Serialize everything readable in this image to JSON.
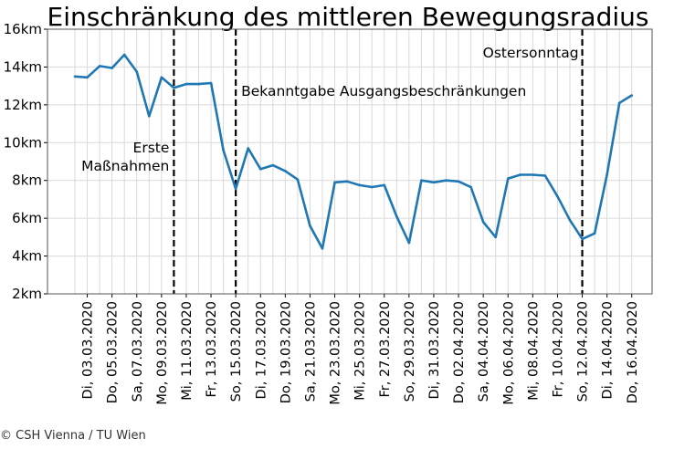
{
  "chart_data": {
    "type": "line",
    "title": "Einschränkung des mittleren Bewegungsradius",
    "xlabel": "",
    "ylabel": "",
    "ylim": [
      2,
      16
    ],
    "yticks": [
      "2km",
      "4km",
      "6km",
      "8km",
      "10km",
      "12km",
      "14km",
      "16km"
    ],
    "grid": true,
    "color": "#1f77b4",
    "x_tick_labels": [
      "Di, 03.03.2020",
      "Do, 05.03.2020",
      "Sa, 07.03.2020",
      "Mo, 09.03.2020",
      "Mi, 11.03.2020",
      "Fr, 13.03.2020",
      "So, 15.03.2020",
      "Di, 17.03.2020",
      "Do, 19.03.2020",
      "Sa, 21.03.2020",
      "Mo, 23.03.2020",
      "Mi, 25.03.2020",
      "Fr, 27.03.2020",
      "So, 29.03.2020",
      "Di, 31.03.2020",
      "Do, 02.04.2020",
      "Sa, 04.04.2020",
      "Mo, 06.04.2020",
      "Mi, 08.04.2020",
      "Fr, 10.04.2020",
      "So, 12.04.2020",
      "Di, 14.04.2020",
      "Do, 16.04.2020"
    ],
    "x": [
      "2020-03-02",
      "2020-03-03",
      "2020-03-04",
      "2020-03-05",
      "2020-03-06",
      "2020-03-07",
      "2020-03-08",
      "2020-03-09",
      "2020-03-10",
      "2020-03-11",
      "2020-03-12",
      "2020-03-13",
      "2020-03-14",
      "2020-03-15",
      "2020-03-16",
      "2020-03-17",
      "2020-03-18",
      "2020-03-19",
      "2020-03-20",
      "2020-03-21",
      "2020-03-22",
      "2020-03-23",
      "2020-03-24",
      "2020-03-25",
      "2020-03-26",
      "2020-03-27",
      "2020-03-28",
      "2020-03-29",
      "2020-03-30",
      "2020-03-31",
      "2020-04-01",
      "2020-04-02",
      "2020-04-03",
      "2020-04-04",
      "2020-04-05",
      "2020-04-06",
      "2020-04-07",
      "2020-04-08",
      "2020-04-09",
      "2020-04-10",
      "2020-04-11",
      "2020-04-12",
      "2020-04-13",
      "2020-04-14",
      "2020-04-15",
      "2020-04-16"
    ],
    "values": [
      13.5,
      13.45,
      14.05,
      13.95,
      14.65,
      13.75,
      11.4,
      13.45,
      12.9,
      13.1,
      13.1,
      13.15,
      9.6,
      7.55,
      9.7,
      8.6,
      8.8,
      8.5,
      8.05,
      5.6,
      4.4,
      7.9,
      7.95,
      7.75,
      7.65,
      7.75,
      6.1,
      4.7,
      8.0,
      7.9,
      8.0,
      7.95,
      7.65,
      5.8,
      5.0,
      8.1,
      8.3,
      8.3,
      8.25,
      7.15,
      5.9,
      4.9,
      5.2,
      8.3,
      12.1,
      12.5
    ],
    "events": [
      {
        "date": "2020-03-10",
        "label_lines": [
          "Erste",
          "Maßnahmen"
        ]
      },
      {
        "date": "2020-03-15",
        "label_lines": [
          "Bekanntgabe Ausgangsbeschränkungen"
        ]
      },
      {
        "date": "2020-04-12",
        "label_lines": [
          "Ostersonntag"
        ]
      }
    ]
  },
  "credit": "© CSH Vienna / TU Wien"
}
